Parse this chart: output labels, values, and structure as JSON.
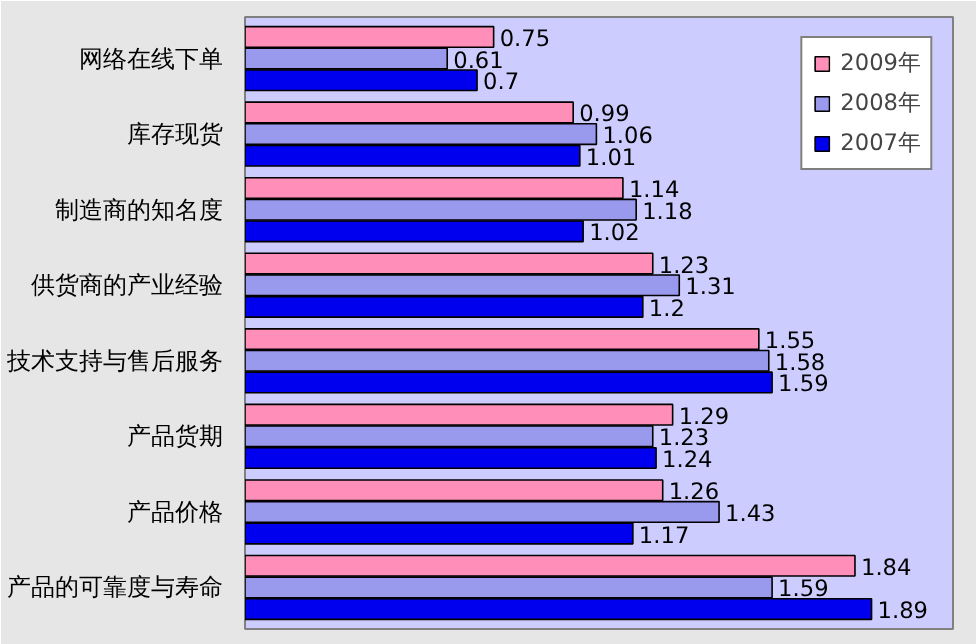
{
  "chart_data": {
    "type": "bar",
    "orientation": "horizontal",
    "data_labels": true,
    "legend": "top right",
    "grid": false,
    "categories": [
      "网络在线下单",
      "库存现货",
      "制造商的知名度",
      "供货商的产业经验",
      "技术支持与售后服务",
      "产品货期",
      "产品价格",
      "产品的可靠度与寿命"
    ],
    "series": [
      {
        "name": "2009年",
        "color": "#ff8fb8",
        "values": [
          0.75,
          0.99,
          1.14,
          1.23,
          1.55,
          1.29,
          1.26,
          1.84
        ]
      },
      {
        "name": "2008年",
        "color": "#9999ee",
        "values": [
          0.61,
          1.06,
          1.18,
          1.31,
          1.58,
          1.23,
          1.43,
          1.59
        ]
      },
      {
        "name": "2007年",
        "color": "#0000ee",
        "values": [
          0.7,
          1.01,
          1.02,
          1.2,
          1.59,
          1.24,
          1.17,
          1.89
        ]
      }
    ]
  }
}
